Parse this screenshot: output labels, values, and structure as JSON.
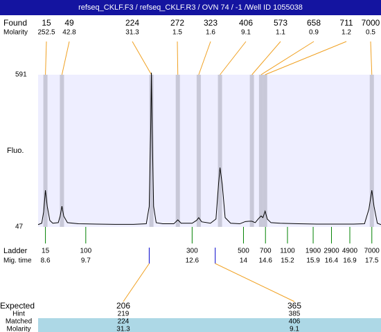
{
  "title": "refseq_CKLF.F3 / refseq_CKLF.R3 / OVN 74 / -1 /Well ID 1055038",
  "found": {
    "label": "Found",
    "molarity_label": "Molarity",
    "peaks": [
      {
        "size": 15,
        "molarity": 252.5,
        "time": 8.6
      },
      {
        "size": 49,
        "molarity": 42.8,
        "time": 9.05
      },
      {
        "size": 224,
        "molarity": 31.3,
        "time": 11.49
      },
      {
        "size": 272,
        "molarity": 1.5,
        "time": 12.21
      },
      {
        "size": 323,
        "molarity": 1.6,
        "time": 12.78
      },
      {
        "size": 406,
        "molarity": 9.1,
        "time": 13.36
      },
      {
        "size": 573,
        "molarity": 1.1,
        "time": 14.23
      },
      {
        "size": 658,
        "molarity": 0.9,
        "time": 14.48
      },
      {
        "size": 711,
        "molarity": 1.2,
        "time": 14.59
      },
      {
        "size": 7000,
        "molarity": 0.5,
        "time": 17.5
      }
    ]
  },
  "chart_data": {
    "type": "line",
    "y_label": "Fluo.",
    "color": "#000000",
    "background": "#eeeeff",
    "xlim": [
      8.4,
      17.75
    ],
    "ylim": [
      47,
      591
    ],
    "yticks": [
      47,
      591
    ],
    "x": [
      8.4,
      8.5,
      8.55,
      8.6,
      8.65,
      8.72,
      8.8,
      8.95,
      9.0,
      9.05,
      9.1,
      9.2,
      9.5,
      10,
      10.5,
      11,
      11.35,
      11.43,
      11.47,
      11.49,
      11.51,
      11.55,
      11.62,
      11.8,
      12.1,
      12.21,
      12.3,
      12.6,
      12.72,
      12.78,
      12.86,
      13.1,
      13.25,
      13.32,
      13.36,
      13.42,
      13.5,
      13.65,
      13.9,
      14.05,
      14.15,
      14.23,
      14.32,
      14.4,
      14.48,
      14.53,
      14.59,
      14.65,
      14.75,
      15,
      15.5,
      16,
      16.5,
      17,
      17.3,
      17.42,
      17.5,
      17.56,
      17.65,
      17.75
    ],
    "values": [
      55,
      60,
      100,
      178,
      120,
      70,
      60,
      62,
      85,
      121,
      85,
      62,
      58,
      57,
      56,
      56,
      58,
      120,
      400,
      598,
      400,
      120,
      62,
      58,
      58,
      72,
      60,
      60,
      70,
      80,
      65,
      60,
      75,
      200,
      259,
      200,
      80,
      60,
      58,
      66,
      67,
      67,
      62,
      75,
      86,
      80,
      103,
      75,
      62,
      60,
      58,
      57,
      57,
      57,
      58,
      110,
      178,
      120,
      60,
      55
    ]
  },
  "ladder": {
    "label": "Ladder",
    "time_label": "Mig. time",
    "sizes": [
      15,
      100,
      300,
      500,
      700,
      1100,
      1900,
      2900,
      4900,
      7000
    ],
    "times": [
      8.6,
      9.7,
      12.6,
      14,
      14.6,
      15.2,
      15.9,
      16.4,
      16.9,
      17.5
    ]
  },
  "expected": {
    "labels": [
      "Expected",
      "Hint",
      "Matched",
      "Molarity"
    ],
    "columns": [
      {
        "expected": 206,
        "hint": 219,
        "matched": 224,
        "molarity": 31.3,
        "time": 11.43
      },
      {
        "expected": 365,
        "hint": 385,
        "matched": 406,
        "molarity": 9.1,
        "time": 13.23
      }
    ]
  }
}
